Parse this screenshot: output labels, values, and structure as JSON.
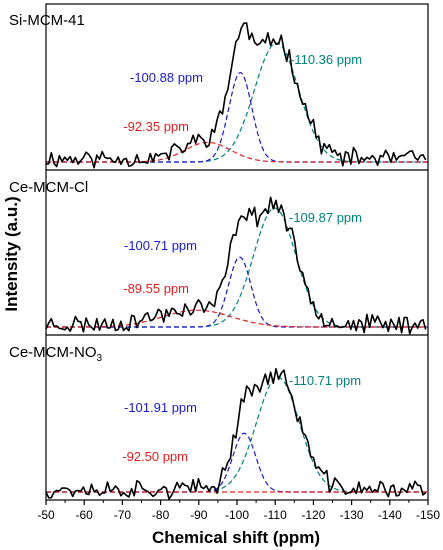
{
  "chart_data": {
    "type": "line",
    "xlabel": "Chemical shift (ppm)",
    "ylabel": "Intensity (a.u.)",
    "xlim": [
      -50,
      -150
    ],
    "xticks": [
      -50,
      -60,
      -70,
      -80,
      -90,
      -100,
      -110,
      -120,
      -130,
      -140,
      -150
    ],
    "x_tick_labels": [
      "-50",
      "-60",
      "-70",
      "-80",
      "-90",
      "-100",
      "-110",
      "-120",
      "-130",
      "-140",
      "-150"
    ],
    "colors": {
      "measured": "#000000",
      "q4": "#008080",
      "q3": "#1a1acc",
      "q2": "#e02020"
    },
    "panels": [
      {
        "title": "Si-MCM-41",
        "title_main": "Si-MCM-41",
        "title_sub": "",
        "noise_seed": 11,
        "baseline": 0.025,
        "peaks": [
          {
            "label": "-110.36 ppm",
            "center": -110.36,
            "width": 5.8,
            "height": 0.85,
            "color": "q4"
          },
          {
            "label": "-100.88 ppm",
            "center": -100.88,
            "width": 3.0,
            "height": 0.64,
            "color": "q3"
          },
          {
            "label": "-92.35 ppm",
            "center": -92.35,
            "width": 6.0,
            "height": 0.14,
            "color": "q2"
          }
        ]
      },
      {
        "title": "Ce-MCM-Cl",
        "title_main": "Ce-MCM-Cl",
        "title_sub": "",
        "noise_seed": 23,
        "baseline": 0.02,
        "peaks": [
          {
            "label": "-109.87 ppm",
            "center": -109.87,
            "width": 5.5,
            "height": 0.85,
            "color": "q4"
          },
          {
            "label": "-100.71 ppm",
            "center": -100.71,
            "width": 2.9,
            "height": 0.5,
            "color": "q3"
          },
          {
            "label": "-89.55 ppm",
            "center": -89.55,
            "width": 9.0,
            "height": 0.12,
            "color": "q2"
          }
        ]
      },
      {
        "title": "Ce-MCM-NO3",
        "title_main": "Ce-MCM-NO",
        "title_sub": "3",
        "noise_seed": 37,
        "baseline": 0.02,
        "peaks": [
          {
            "label": "-110.71 ppm",
            "center": -110.71,
            "width": 5.6,
            "height": 0.82,
            "color": "q4"
          },
          {
            "label": "-101.91 ppm",
            "center": -101.91,
            "width": 3.0,
            "height": 0.42,
            "color": "q3"
          },
          {
            "label": "-92.50 ppm",
            "center": -92.5,
            "width": 8.0,
            "height": 0.0,
            "color": "q2"
          }
        ]
      }
    ]
  }
}
